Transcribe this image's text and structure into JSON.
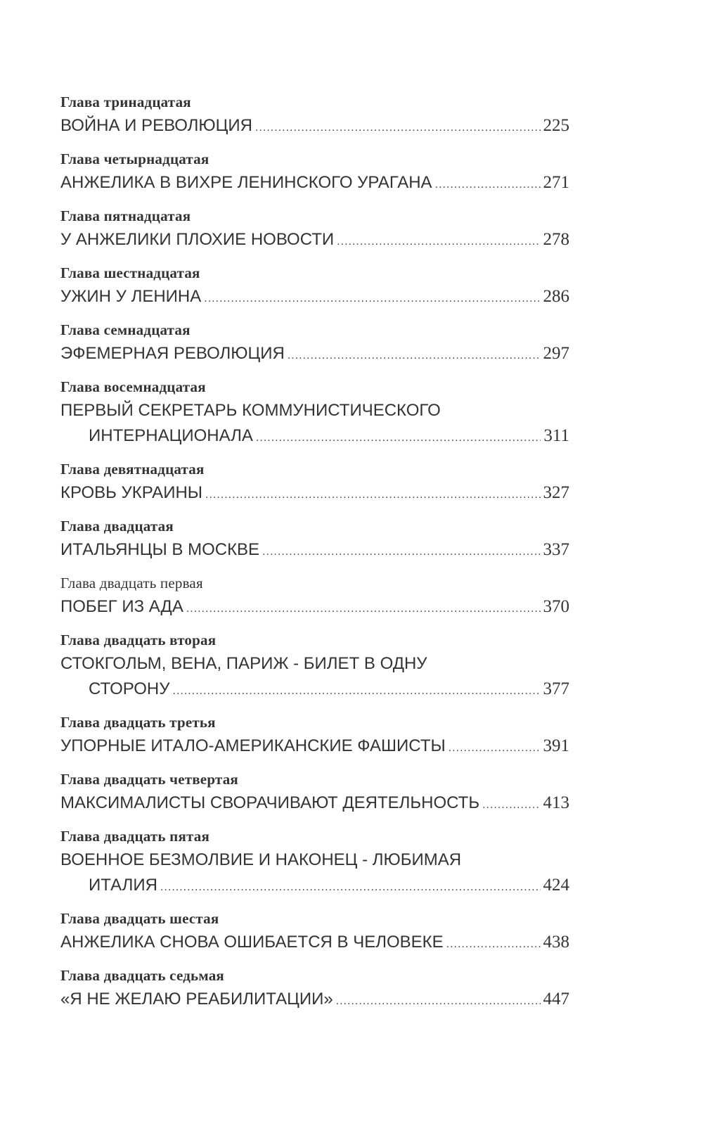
{
  "toc": [
    {
      "heading": "Глава тринадцатая",
      "title": [
        "ВОЙНА И РЕВОЛЮЦИЯ"
      ],
      "page": "225",
      "bold": true
    },
    {
      "heading": "Глава четырнадцатая",
      "title": [
        "АНЖЕЛИКА В ВИХРЕ ЛЕНИНСКОГО УРАГАНА"
      ],
      "page": "271",
      "bold": true
    },
    {
      "heading": "Глава пятнадцатая",
      "title": [
        "У АНЖЕЛИКИ ПЛОХИЕ НОВОСТИ"
      ],
      "page": "278",
      "bold": true
    },
    {
      "heading": "Глава шестнадцатая",
      "title": [
        "УЖИН У ЛЕНИНА"
      ],
      "page": "286",
      "bold": true
    },
    {
      "heading": "Глава семнадцатая",
      "title": [
        "ЭФЕМЕРНАЯ РЕВОЛЮЦИЯ"
      ],
      "page": "297",
      "bold": true
    },
    {
      "heading": "Глава восемнадцатая",
      "title": [
        "ПЕРВЫЙ СЕКРЕТАРЬ КОММУНИСТИЧЕСКОГО",
        "ИНТЕРНАЦИОНАЛА"
      ],
      "page": "311",
      "bold": true
    },
    {
      "heading": "Глава девятнадцатая",
      "title": [
        "КРОВЬ УКРАИНЫ"
      ],
      "page": "327",
      "bold": true
    },
    {
      "heading": "Глава двадцатая",
      "title": [
        "ИТАЛЬЯНЦЫ В МОСКВЕ"
      ],
      "page": "337",
      "bold": true
    },
    {
      "heading": "Глава двадцать первая",
      "title": [
        "ПОБЕГ ИЗ АДА"
      ],
      "page": "370",
      "bold": false
    },
    {
      "heading": "Глава двадцать вторая",
      "title": [
        "СТОКГОЛЬМ, ВЕНА, ПАРИЖ - БИЛЕТ В ОДНУ",
        "СТОРОНУ"
      ],
      "page": "377",
      "bold": true
    },
    {
      "heading": "Глава двадцать третья",
      "title": [
        "УПОРНЫЕ ИТАЛО-АМЕРИКАНСКИЕ ФАШИСТЫ"
      ],
      "page": "391",
      "bold": true
    },
    {
      "heading": "Глава двадцать четвертая",
      "title": [
        "МАКСИМАЛИСТЫ СВОРАЧИВАЮТ ДЕЯТЕЛЬНОСТЬ"
      ],
      "page": "413",
      "bold": true
    },
    {
      "heading": "Глава двадцать пятая",
      "title": [
        "ВОЕННОЕ БЕЗМОЛВИЕ И НАКОНЕЦ - ЛЮБИМАЯ",
        "ИТАЛИЯ"
      ],
      "page": "424",
      "bold": true
    },
    {
      "heading": "Глава двадцать шестая",
      "title": [
        "АНЖЕЛИКА СНОВА ОШИБАЕТСЯ В ЧЕЛОВЕКЕ"
      ],
      "page": "438",
      "bold": true
    },
    {
      "heading": "Глава двадцать седьмая",
      "title": [
        "«Я НЕ ЖЕЛАЮ РЕАБИЛИТАЦИИ»"
      ],
      "page": "447",
      "bold": true
    }
  ]
}
